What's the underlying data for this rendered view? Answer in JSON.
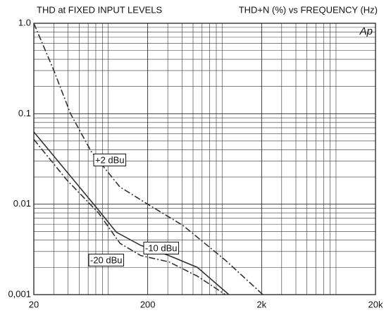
{
  "chart_data": {
    "type": "line",
    "title": "THD at FIXED INPUT LEVELS",
    "subtitle": "THD+N (%) vs FREQUENCY (Hz)",
    "logo": "Ap",
    "xscale": "log",
    "yscale": "log",
    "grid": true,
    "xlim": [
      20,
      20000
    ],
    "ylim": [
      0.001,
      1
    ],
    "xticks": [
      20,
      200,
      {
        "value": 2000,
        "label": "2k"
      },
      {
        "value": 20000,
        "label": "20k"
      }
    ],
    "yticks": [
      {
        "value": 0.001,
        "label": "0,001"
      },
      0.01,
      0.1,
      {
        "value": 1,
        "label": "1.0"
      }
    ],
    "series": [
      {
        "name": "+2 dBu",
        "color": "#333333",
        "dash": "dashdot",
        "x": [
          20,
          30,
          42,
          64,
          114,
          200,
          409,
          962,
          2050
        ],
        "values": [
          1.0,
          0.3,
          0.1,
          0.038,
          0.0155,
          0.01,
          0.0058,
          0.0024,
          0.001
        ]
      },
      {
        "name": "-10 dBu",
        "color": "#333333",
        "dash": "solid",
        "x": [
          20,
          74,
          106,
          174,
          308,
          546,
          1033
        ],
        "values": [
          0.063,
          0.0086,
          0.0049,
          0.0035,
          0.0027,
          0.002,
          0.001
        ]
      },
      {
        "name": "-20 dBu",
        "color": "#333333",
        "dash": "dashdot",
        "x": [
          20,
          39,
          74,
          114,
          174,
          308,
          546,
          962
        ],
        "values": [
          0.052,
          0.0185,
          0.008,
          0.0037,
          0.0027,
          0.0023,
          0.0016,
          0.001
        ]
      }
    ]
  }
}
